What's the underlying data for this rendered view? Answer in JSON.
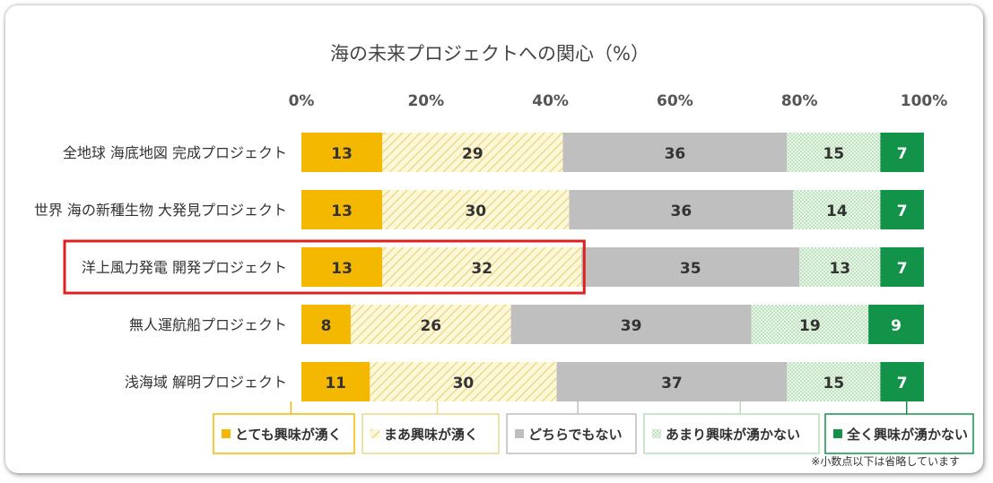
{
  "chart_data": {
    "type": "bar",
    "orientation": "horizontal",
    "stacked": "percent",
    "title": "海の未来プロジェクトへの関心（%）",
    "x_ticks": [
      "0%",
      "20%",
      "40%",
      "60%",
      "80%",
      "100%"
    ],
    "xlim": [
      0,
      100
    ],
    "categories": [
      "全地球 海底地図 完成プロジェクト",
      "世界 海の新種生物 大発見プロジェクト",
      "洋上風力発電 開発プロジェクト",
      "無人運航船プロジェクト",
      "浅海域 解明プロジェクト"
    ],
    "series": [
      {
        "name": "とても興味が湧く",
        "values": [
          13,
          13,
          13,
          8,
          11
        ],
        "color": "#F5B800",
        "pattern": "solid"
      },
      {
        "name": "まあ興味が湧く",
        "values": [
          29,
          30,
          32,
          26,
          30
        ],
        "color": "#FBF0B4",
        "pattern": "hatch"
      },
      {
        "name": "どちらでもない",
        "values": [
          36,
          36,
          35,
          39,
          37
        ],
        "color": "#BFBFBF",
        "pattern": "solid"
      },
      {
        "name": "あまり興味が湧かない",
        "values": [
          15,
          14,
          13,
          19,
          15
        ],
        "color": "#D9EED9",
        "pattern": "dots"
      },
      {
        "name": "全く興味が湧かない",
        "values": [
          7,
          7,
          7,
          9,
          7
        ],
        "color": "#13934A",
        "pattern": "solid"
      }
    ],
    "highlight_category": "洋上風力発電 開発プロジェクト",
    "highlight_color": "#E0201F",
    "legend_position": "bottom",
    "grid": false,
    "footnote": "※小数点以下は省略しています"
  }
}
